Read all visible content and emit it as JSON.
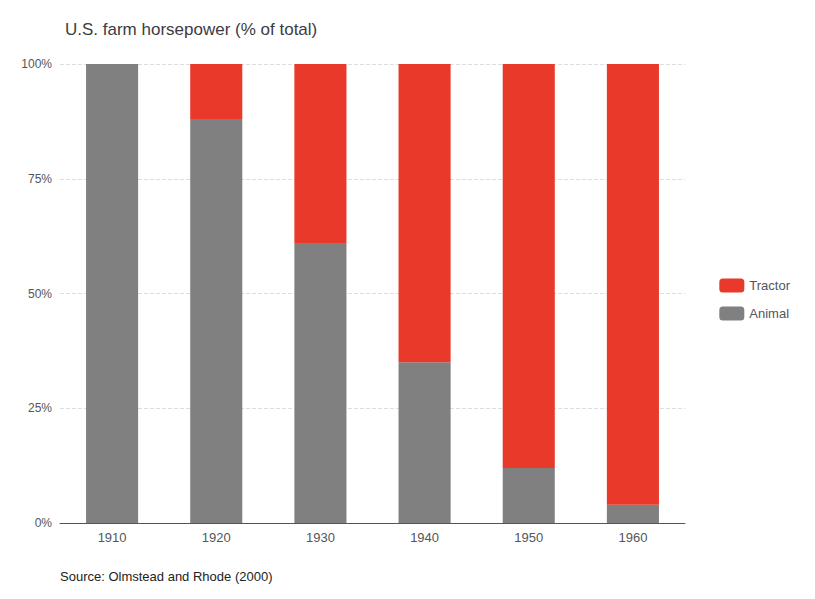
{
  "chart_data": {
    "type": "bar",
    "stacked": true,
    "title": "U.S. farm horsepower (% of total)",
    "categories": [
      "1910",
      "1920",
      "1930",
      "1940",
      "1950",
      "1960"
    ],
    "series": [
      {
        "name": "Animal",
        "color": "#808080",
        "values": [
          100,
          88,
          61,
          35,
          12,
          4
        ]
      },
      {
        "name": "Tractor",
        "color": "#e8392a",
        "values": [
          0,
          12,
          39,
          65,
          88,
          96
        ]
      }
    ],
    "ylim": [
      0,
      100
    ],
    "yticks": [
      {
        "value": 0,
        "label": "0%"
      },
      {
        "value": 25,
        "label": "25%"
      },
      {
        "value": 50,
        "label": "50%"
      },
      {
        "value": 75,
        "label": "75%"
      },
      {
        "value": 100,
        "label": "100%"
      }
    ],
    "grid": true,
    "legend": "right",
    "source": "Source: Olmstead and Rhode (2000)"
  }
}
